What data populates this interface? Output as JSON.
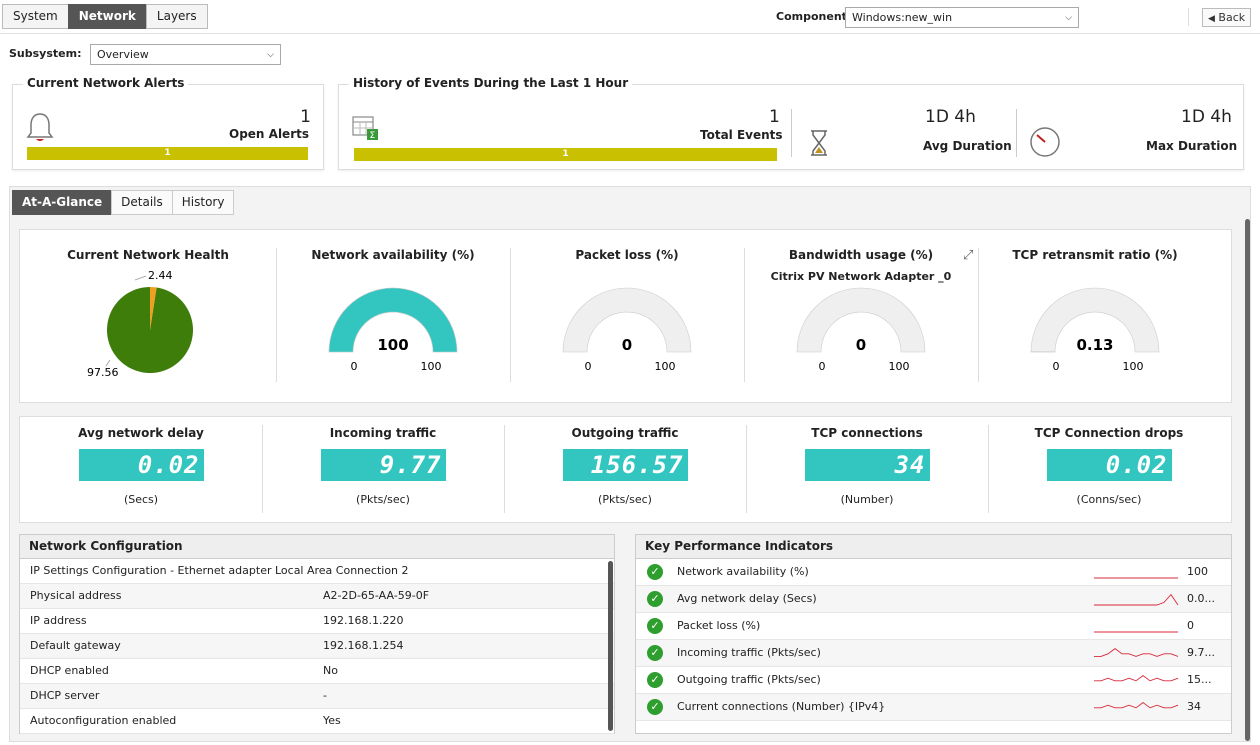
{
  "top_tabs": [
    "System",
    "Network",
    "Layers"
  ],
  "active_top_tab": "Network",
  "component": {
    "label": "Component",
    "value": "Windows:new_win"
  },
  "back_label": "Back",
  "subsystem": {
    "label": "Subsystem:",
    "value": "Overview"
  },
  "alerts": {
    "title": "Current Network Alerts",
    "count": "1",
    "label": "Open Alerts",
    "bar_value": "1"
  },
  "history": {
    "title": "History of Events During the Last 1 Hour",
    "total_count": "1",
    "total_label": "Total Events",
    "bar_value": "1",
    "avg_value": "1D 4h",
    "avg_label": "Avg Duration",
    "max_value": "1D 4h",
    "max_label": "Max Duration"
  },
  "sub_tabs": [
    "At-A-Glance",
    "Details",
    "History"
  ],
  "active_sub_tab": "At-A-Glance",
  "health": {
    "title": "Current Network Health",
    "healthy": "97.56",
    "other": "2.44",
    "healthy_pct": 97.56
  },
  "gauges": [
    {
      "title": "Network availability (%)",
      "subtitle": "",
      "value": "100",
      "min": "0",
      "max": "100",
      "fraction": 1.0
    },
    {
      "title": "Packet loss (%)",
      "subtitle": "",
      "value": "0",
      "min": "0",
      "max": "100",
      "fraction": 0
    },
    {
      "title": "Bandwidth usage (%)",
      "subtitle": "Citrix PV Network Adapter _0",
      "value": "0",
      "min": "0",
      "max": "100",
      "fraction": 0
    },
    {
      "title": "TCP retransmit ratio (%)",
      "subtitle": "",
      "value": "0.13",
      "min": "0",
      "max": "100",
      "fraction": 0.0013
    }
  ],
  "digitals": [
    {
      "title": "Avg network delay",
      "value": "0.02",
      "unit": "(Secs)"
    },
    {
      "title": "Incoming traffic",
      "value": "9.77",
      "unit": "(Pkts/sec)"
    },
    {
      "title": "Outgoing traffic",
      "value": "156.57",
      "unit": "(Pkts/sec)"
    },
    {
      "title": "TCP connections",
      "value": "34",
      "unit": "(Number)"
    },
    {
      "title": "TCP Connection drops",
      "value": "0.02",
      "unit": "(Conns/sec)"
    }
  ],
  "net_config": {
    "title": "Network Configuration",
    "caption": "IP Settings Configuration - Ethernet adapter Local Area Connection 2",
    "rows": [
      {
        "k": "Physical address",
        "v": "A2-2D-65-AA-59-0F"
      },
      {
        "k": "IP address",
        "v": "192.168.1.220"
      },
      {
        "k": "Default gateway",
        "v": "192.168.1.254"
      },
      {
        "k": "DHCP enabled",
        "v": "No"
      },
      {
        "k": "DHCP server",
        "v": "-"
      },
      {
        "k": "Autoconfiguration enabled",
        "v": "Yes"
      }
    ]
  },
  "kpi": {
    "title": "Key Performance Indicators",
    "rows": [
      {
        "name": "Network availability (%)",
        "value": "100",
        "trend": [
          5,
          5,
          5,
          5,
          5,
          5,
          5,
          5,
          5,
          5,
          5,
          5
        ]
      },
      {
        "name": "Avg network delay (Secs)",
        "value": "0.0...",
        "trend": [
          5,
          5,
          5,
          5,
          5,
          5,
          5,
          5,
          5,
          5,
          4,
          1,
          5
        ]
      },
      {
        "name": "Packet loss (%)",
        "value": "0",
        "trend": [
          5,
          5,
          5,
          5,
          5,
          5,
          5,
          5,
          5,
          5,
          5,
          5
        ]
      },
      {
        "name": "Incoming traffic (Pkts/sec)",
        "value": "9.7...",
        "trend": [
          4,
          4,
          3,
          1,
          3,
          3,
          4,
          3,
          3,
          4,
          3,
          3,
          4
        ]
      },
      {
        "name": "Outgoing traffic (Pkts/sec)",
        "value": "15...",
        "trend": [
          3,
          3,
          2,
          3,
          3,
          2,
          3,
          1,
          3,
          2,
          3,
          3,
          2
        ]
      },
      {
        "name": "Current connections (Number) {IPv4}",
        "value": "34",
        "trend": [
          3,
          3,
          2,
          3,
          3,
          2,
          3,
          1,
          3,
          2,
          3,
          3,
          2
        ]
      }
    ]
  },
  "colors": {
    "teal": "#33c6c0",
    "yellow_bar": "#c8c000",
    "pie_green": "#3f7d0a",
    "pie_orange": "#f0a020",
    "spark_red": "#d8283a",
    "check_green": "#2e9e2e"
  }
}
